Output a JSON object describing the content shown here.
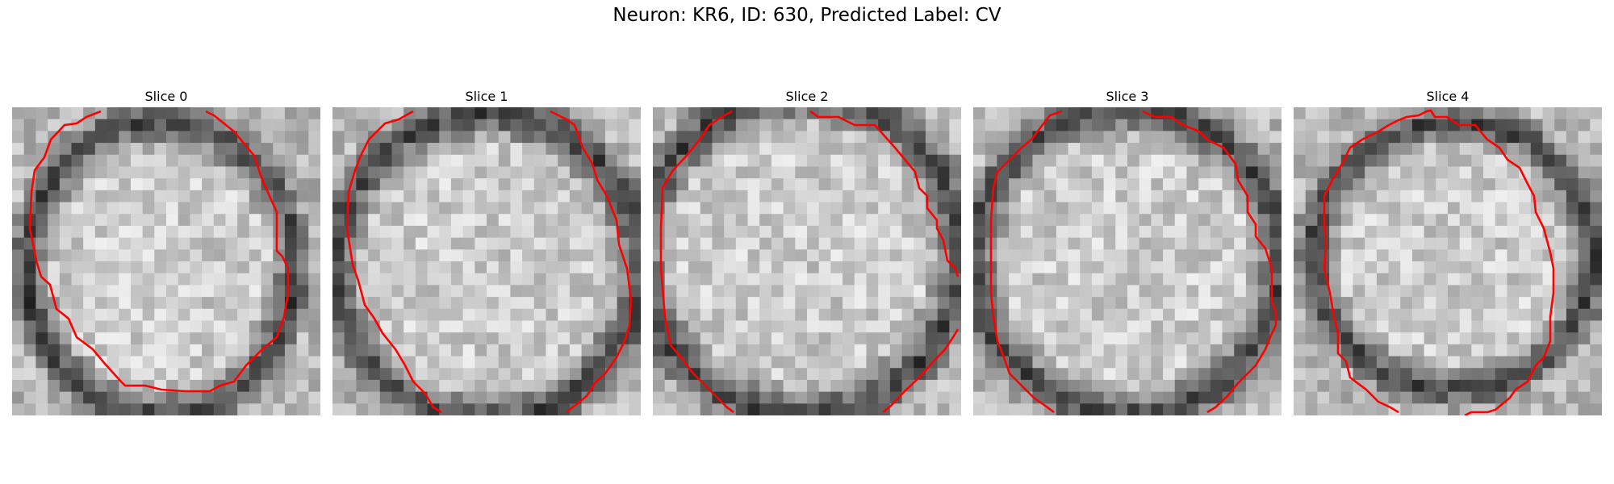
{
  "figure": {
    "title": "Neuron: KR6, ID: 630, Predicted Label: CV"
  },
  "panels": [
    {
      "label": "Slice 0"
    },
    {
      "label": "Slice 1"
    },
    {
      "label": "Slice 2"
    },
    {
      "label": "Slice 3"
    },
    {
      "label": "Slice 4"
    }
  ],
  "colors": {
    "contour": "#ff0000",
    "image_dark": "#1a1a1a",
    "image_light": "#f2f2f2"
  }
}
